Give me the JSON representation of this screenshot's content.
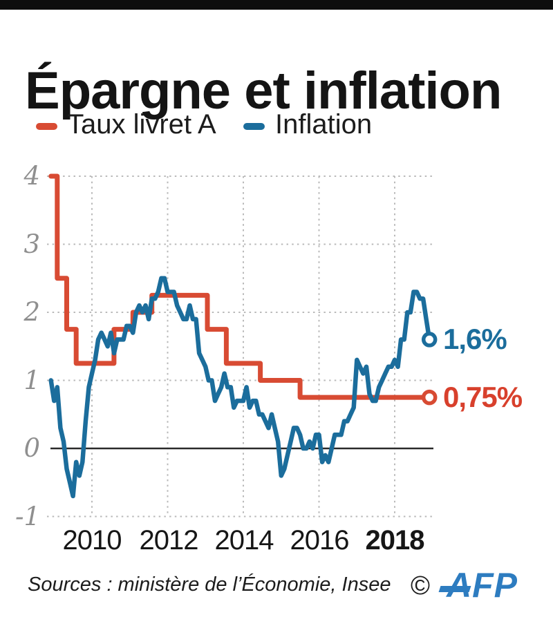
{
  "header": {
    "title": "Épargne et inflation"
  },
  "legend": [
    {
      "label": "Taux livret A",
      "color": "#d84b33"
    },
    {
      "label": "Inflation",
      "color": "#1b6d9c"
    }
  ],
  "chart_data": {
    "type": "line",
    "title": "Épargne et inflation",
    "xlabel": "",
    "ylabel": "",
    "grid": true,
    "legend_position": "top",
    "xlim": [
      2008.9,
      2019.0
    ],
    "ylim": [
      -1,
      4
    ],
    "yticks": [
      {
        "value": 4,
        "label": "4"
      },
      {
        "value": 3,
        "label": "3"
      },
      {
        "value": 2,
        "label": "2"
      },
      {
        "value": 1,
        "label": "1"
      },
      {
        "value": 0,
        "label": "0"
      },
      {
        "value": -1,
        "label": "-1"
      }
    ],
    "xticks": [
      {
        "value": 2010,
        "label": "2010",
        "bold": false
      },
      {
        "value": 2012,
        "label": "2012",
        "bold": false
      },
      {
        "value": 2014,
        "label": "2014",
        "bold": false
      },
      {
        "value": 2016,
        "label": "2016",
        "bold": false
      },
      {
        "value": 2018,
        "label": "2018",
        "bold": true
      }
    ],
    "series": [
      {
        "name": "Taux livret A",
        "color": "#d84b33",
        "type": "step",
        "end_label": "0,75%",
        "end_value": 0.75,
        "steps": [
          {
            "from": 2008.917,
            "to": 2009.083,
            "value": 4.0
          },
          {
            "from": 2009.083,
            "to": 2009.333,
            "value": 2.5
          },
          {
            "from": 2009.333,
            "to": 2009.583,
            "value": 1.75
          },
          {
            "from": 2009.583,
            "to": 2010.583,
            "value": 1.25
          },
          {
            "from": 2010.583,
            "to": 2011.083,
            "value": 1.75
          },
          {
            "from": 2011.083,
            "to": 2011.583,
            "value": 2.0
          },
          {
            "from": 2011.583,
            "to": 2013.05,
            "value": 2.25
          },
          {
            "from": 2013.05,
            "to": 2013.55,
            "value": 1.75
          },
          {
            "from": 2013.55,
            "to": 2014.45,
            "value": 1.25
          },
          {
            "from": 2014.45,
            "to": 2015.5,
            "value": 1.0
          },
          {
            "from": 2015.5,
            "to": 2018.917,
            "value": 0.75
          }
        ]
      },
      {
        "name": "Inflation",
        "color": "#1b6d9c",
        "type": "line",
        "end_label": "1,6%",
        "end_value": 1.6,
        "start": 2008.917,
        "monthly_values": [
          1.0,
          0.7,
          0.9,
          0.3,
          0.1,
          -0.3,
          -0.5,
          -0.7,
          -0.2,
          -0.4,
          -0.2,
          0.4,
          0.9,
          1.1,
          1.3,
          1.6,
          1.7,
          1.6,
          1.5,
          1.7,
          1.4,
          1.6,
          1.6,
          1.6,
          1.8,
          1.8,
          1.7,
          2.0,
          2.1,
          2.0,
          2.1,
          1.9,
          2.2,
          2.2,
          2.3,
          2.5,
          2.5,
          2.3,
          2.3,
          2.3,
          2.1,
          2.0,
          1.9,
          1.9,
          2.1,
          1.9,
          1.9,
          1.4,
          1.3,
          1.2,
          1.0,
          1.0,
          0.7,
          0.8,
          0.9,
          1.1,
          0.9,
          0.9,
          0.6,
          0.7,
          0.7,
          0.7,
          0.9,
          0.6,
          0.7,
          0.7,
          0.5,
          0.5,
          0.4,
          0.3,
          0.5,
          0.3,
          0.1,
          -0.4,
          -0.3,
          -0.1,
          0.1,
          0.3,
          0.3,
          0.2,
          0.0,
          0.0,
          0.1,
          0.0,
          0.2,
          0.2,
          -0.2,
          -0.1,
          -0.2,
          0.0,
          0.2,
          0.2,
          0.2,
          0.4,
          0.4,
          0.5,
          0.6,
          1.3,
          1.2,
          1.1,
          1.2,
          0.8,
          0.7,
          0.7,
          0.9,
          1.0,
          1.1,
          1.2,
          1.2,
          1.3,
          1.2,
          1.6,
          1.6,
          2.0,
          2.0,
          2.3,
          2.3,
          2.2,
          2.2,
          1.9,
          1.6
        ]
      }
    ],
    "annotations": [
      {
        "text": "1,6%",
        "color": "#1b6d9c"
      },
      {
        "text": "0,75%",
        "color": "#d8402c"
      }
    ]
  },
  "footer": {
    "sources": "Sources : ministère de l’Économie, Insee",
    "copyright": "©",
    "agency": "AFP",
    "agency_color": "#2d7cc0"
  }
}
